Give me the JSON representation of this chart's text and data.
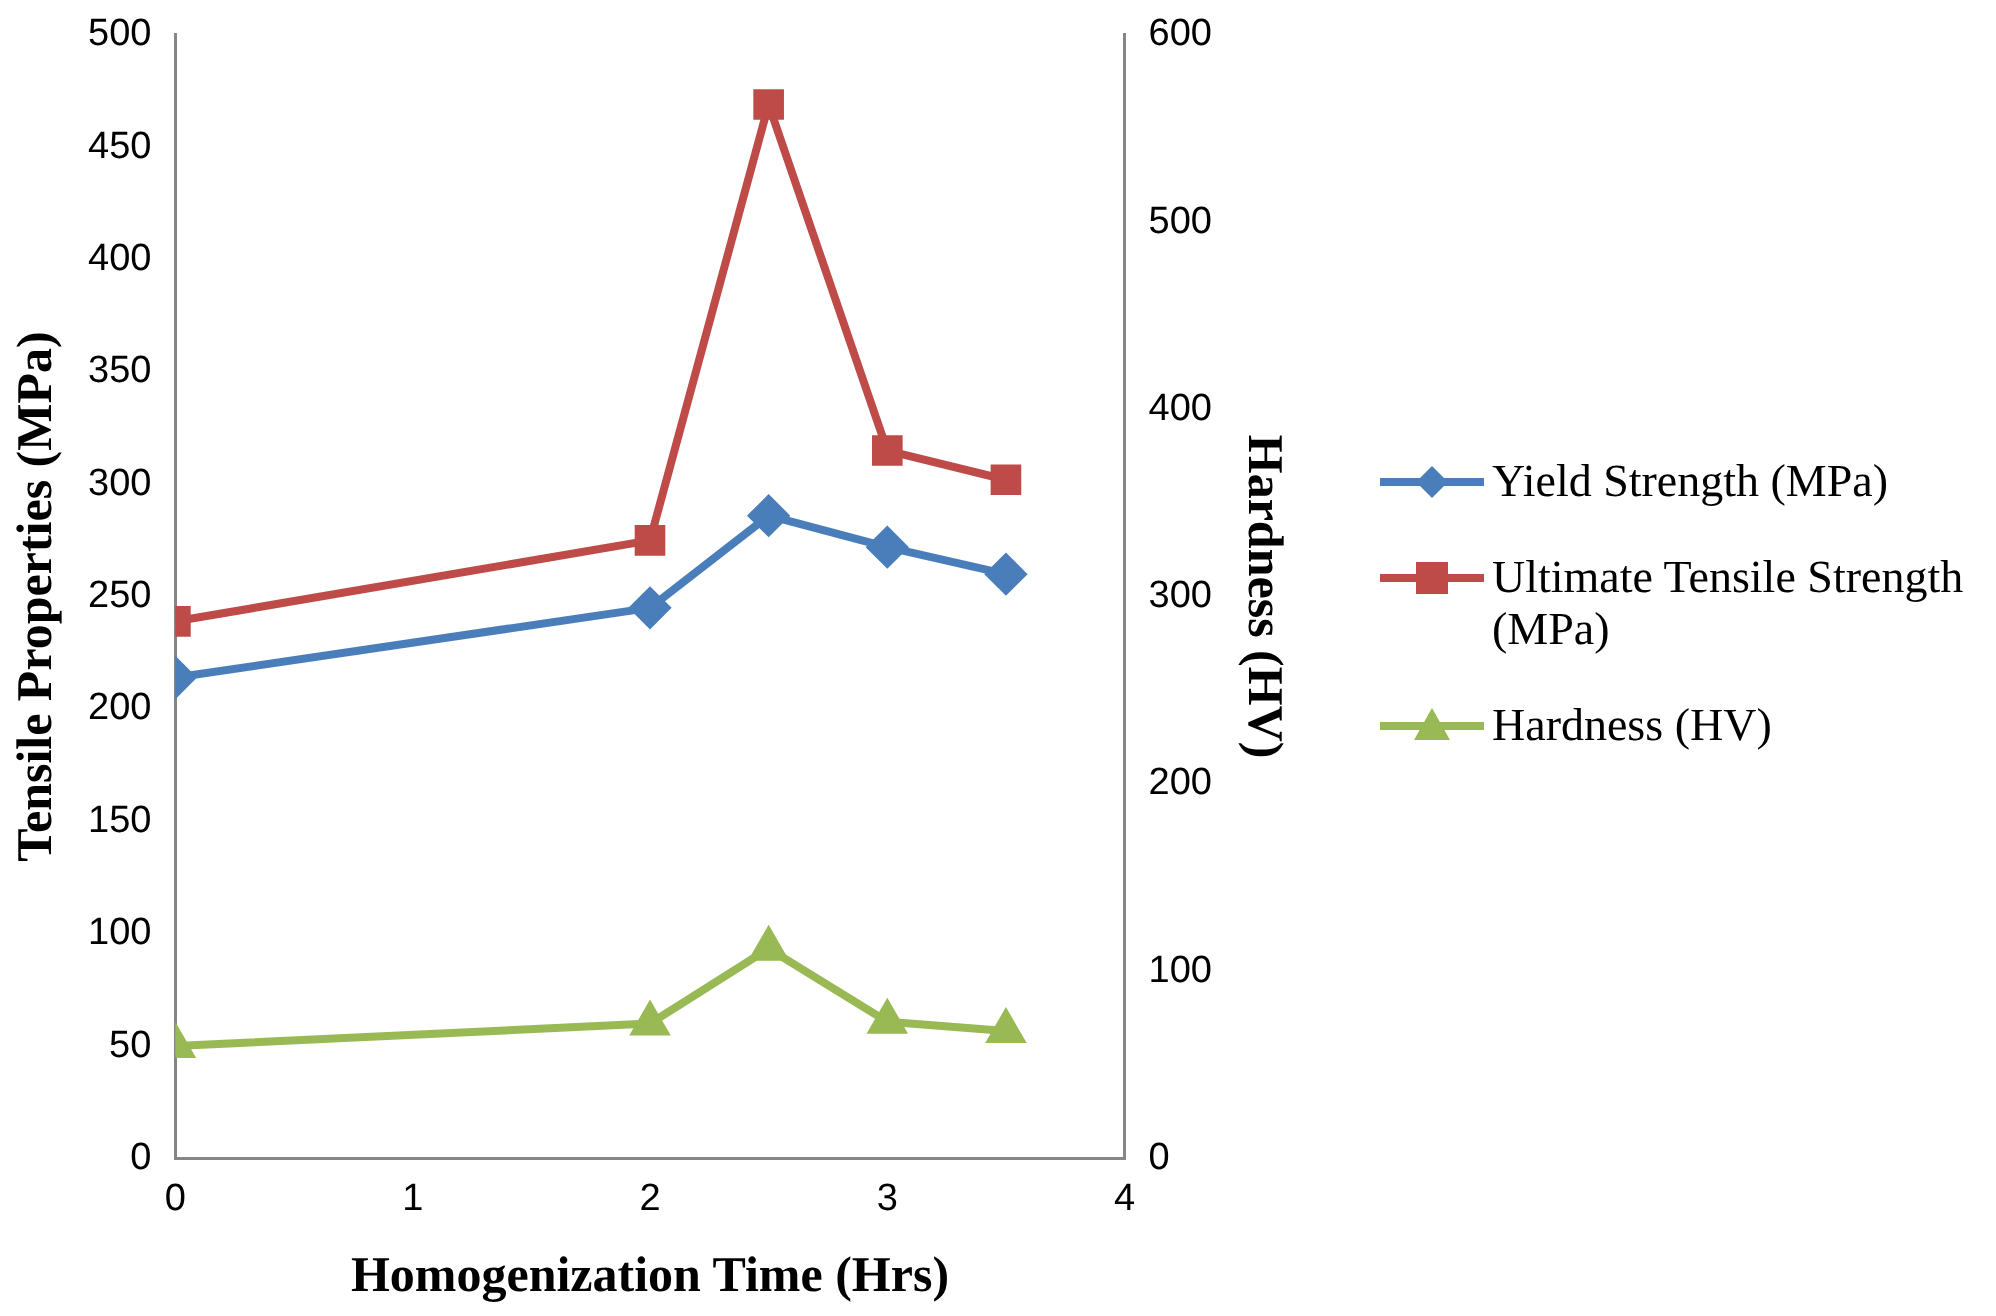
{
  "chart_data": {
    "type": "line",
    "xlabel": "Homogenization Time (Hrs)",
    "ylabel": "Tensile Properties (MPa)",
    "y2label": "Hardness (HV)",
    "x": [
      0,
      2,
      2.5,
      3,
      3.5
    ],
    "xlim": [
      0,
      4
    ],
    "xticks": [
      0,
      1,
      2,
      3,
      4
    ],
    "ylim": [
      0,
      500
    ],
    "yticks": [
      0,
      50,
      100,
      150,
      200,
      250,
      300,
      350,
      400,
      450,
      500
    ],
    "y2lim": [
      0,
      600
    ],
    "y2ticks": [
      0,
      100,
      200,
      300,
      400,
      500,
      600
    ],
    "grid": false,
    "legend": "right",
    "series": [
      {
        "name": "Yield Strength (MPa)",
        "color": "#4a7ebb",
        "marker": "diamond",
        "values": [
          214,
          245,
          286,
          272,
          260
        ]
      },
      {
        "name": "Ultimate Tensile Strength (MPa)",
        "color": "#be4b48",
        "marker": "square",
        "values": [
          239,
          275,
          469,
          315,
          302
        ]
      },
      {
        "name": "Hardness (HV)",
        "color": "#98b954",
        "marker": "triangle",
        "axis": "y2",
        "values": [
          60,
          72,
          112,
          73,
          68
        ]
      }
    ]
  }
}
